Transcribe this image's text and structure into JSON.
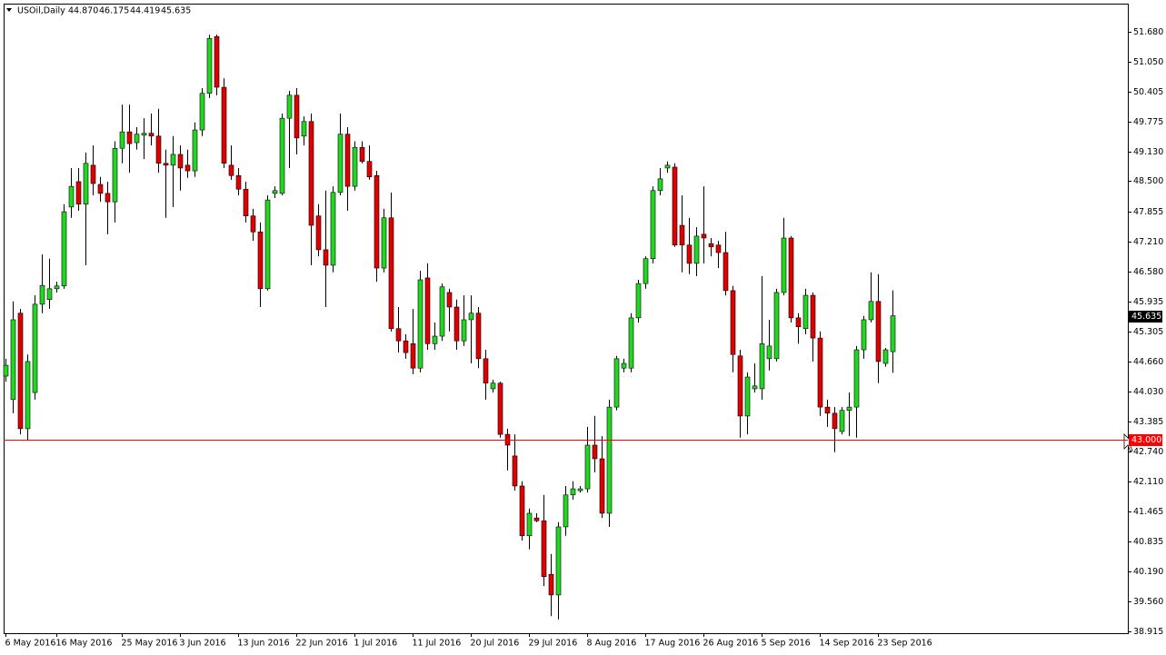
{
  "chart_data": {
    "type": "candlestick",
    "title": "USOil,Daily",
    "info": [
      "44.870",
      "46.175",
      "44.419",
      "45.635"
    ],
    "bull_color": "#22d622",
    "bear_color": "#e00000",
    "wick_color": "#000000",
    "open": [
      44.35,
      43.85,
      45.69,
      43.23,
      44.0,
      45.88,
      45.98,
      46.21,
      46.27,
      47.95,
      48.49,
      48.01,
      48.84,
      48.43,
      48.24,
      48.06,
      49.2,
      49.55,
      49.32,
      49.48,
      49.52,
      49.46,
      48.88,
      48.84,
      49.07,
      48.84,
      48.72,
      49.59,
      50.37,
      51.58,
      50.5,
      48.84,
      48.62,
      48.33,
      47.76,
      47.42,
      46.21,
      48.24,
      48.24,
      49.84,
      50.33,
      49.46,
      49.77,
      47.76,
      47.04,
      46.71,
      48.26,
      49.5,
      48.39,
      49.22,
      48.92,
      48.62,
      46.65,
      47.72,
      45.36,
      45.1,
      45.04,
      44.52,
      46.44,
      45.04,
      45.2,
      46.13,
      45.82,
      45.1,
      45.55,
      45.69,
      44.72,
      44.08,
      44.2,
      43.11,
      42.65,
      42.01,
      40.95,
      41.33,
      41.27,
      40.13,
      39.69,
      41.14,
      41.82,
      41.91,
      41.95,
      42.88,
      42.59,
      41.43,
      43.69,
      44.52,
      44.52,
      45.59,
      46.32,
      46.85,
      48.3,
      48.78,
      48.8,
      47.56,
      47.14,
      46.75,
      47.37,
      47.17,
      47.14,
      46.98,
      46.17,
      44.78,
      43.5,
      44.08,
      44.08,
      44.72,
      44.72,
      46.13,
      47.29,
      45.59,
      45.36,
      46.07,
      45.16,
      43.69,
      43.56,
      43.17,
      43.62,
      43.69,
      44.91,
      45.55,
      45.94,
      44.62,
      44.87
    ],
    "high": [
      44.72,
      45.94,
      45.78,
      44.81,
      46.07,
      46.94,
      46.85,
      46.36,
      48.01,
      48.78,
      48.78,
      49.11,
      49.26,
      48.59,
      48.49,
      49.35,
      50.13,
      50.13,
      49.65,
      49.84,
      49.94,
      50.04,
      49.17,
      49.46,
      49.26,
      49.17,
      49.75,
      50.48,
      51.62,
      51.62,
      50.69,
      49.26,
      48.78,
      48.49,
      47.91,
      47.62,
      48.2,
      48.39,
      49.94,
      50.42,
      50.48,
      49.88,
      49.94,
      48.01,
      48.3,
      48.39,
      49.94,
      49.65,
      49.35,
      49.35,
      49.26,
      48.72,
      47.91,
      48.26,
      45.82,
      45.24,
      45.78,
      46.59,
      46.75,
      45.49,
      46.32,
      46.21,
      45.98,
      46.07,
      46.07,
      45.82,
      44.91,
      44.27,
      44.23,
      43.23,
      43.11,
      42.11,
      41.53,
      41.43,
      41.82,
      40.56,
      41.24,
      42.01,
      42.11,
      42.01,
      43.27,
      43.5,
      43.07,
      43.85,
      44.78,
      44.72,
      45.69,
      46.4,
      46.9,
      48.39,
      48.78,
      48.92,
      48.88,
      48.2,
      47.72,
      47.52,
      48.39,
      47.29,
      47.23,
      47.42,
      46.27,
      44.91,
      44.43,
      44.62,
      46.48,
      45.55,
      46.21,
      47.72,
      47.33,
      45.69,
      46.21,
      46.13,
      45.3,
      43.85,
      43.69,
      43.69,
      44.0,
      44.99,
      45.63,
      46.56,
      46.52,
      44.95,
      46.175
    ],
    "low": [
      44.23,
      43.56,
      43.11,
      42.98,
      43.85,
      45.69,
      45.78,
      46.13,
      46.21,
      47.72,
      47.87,
      46.71,
      48.2,
      48.06,
      47.37,
      47.62,
      48.88,
      48.68,
      49.17,
      48.97,
      49.26,
      48.68,
      47.72,
      47.95,
      48.3,
      48.57,
      48.59,
      49.46,
      50.27,
      50.33,
      48.78,
      48.53,
      48.2,
      47.62,
      47.23,
      45.82,
      46.17,
      48.14,
      48.2,
      48.78,
      49.07,
      49.26,
      46.71,
      46.9,
      45.82,
      46.56,
      48.2,
      47.87,
      48.3,
      48.88,
      48.53,
      46.36,
      46.56,
      45.3,
      44.85,
      44.72,
      44.39,
      44.43,
      44.91,
      44.91,
      45.1,
      45.3,
      44.91,
      44.99,
      44.62,
      44.52,
      43.85,
      44.0,
      43.04,
      42.34,
      41.91,
      40.85,
      40.66,
      41.24,
      39.88,
      39.24,
      39.17,
      40.95,
      41.72,
      41.87,
      41.87,
      42.3,
      41.33,
      41.14,
      43.62,
      44.43,
      44.43,
      45.49,
      46.21,
      46.75,
      48.2,
      48.68,
      47.1,
      46.56,
      46.52,
      46.48,
      46.75,
      46.9,
      46.65,
      46.07,
      44.43,
      43.04,
      43.11,
      44.0,
      43.85,
      44.47,
      44.66,
      46.07,
      45.49,
      45.04,
      45.24,
      44.66,
      43.5,
      43.27,
      42.73,
      43.11,
      43.07,
      43.04,
      44.72,
      45.49,
      44.2,
      44.55,
      44.419
    ],
    "close": [
      44.58,
      45.55,
      43.23,
      44.66,
      45.88,
      46.28,
      46.21,
      46.27,
      47.85,
      48.39,
      48.01,
      48.88,
      48.45,
      48.24,
      48.06,
      49.2,
      49.55,
      49.3,
      49.5,
      49.52,
      49.46,
      48.88,
      48.84,
      49.07,
      48.78,
      48.72,
      49.59,
      50.37,
      51.54,
      50.5,
      48.88,
      48.62,
      48.33,
      47.76,
      47.42,
      46.21,
      48.1,
      48.3,
      49.84,
      50.33,
      49.42,
      49.77,
      47.56,
      47.04,
      46.71,
      48.26,
      49.5,
      48.39,
      49.22,
      48.92,
      48.59,
      46.65,
      47.72,
      45.36,
      45.1,
      44.85,
      44.52,
      46.4,
      45.04,
      45.2,
      46.25,
      45.82,
      45.1,
      45.55,
      45.69,
      44.72,
      44.2,
      44.2,
      43.11,
      42.88,
      42.01,
      40.95,
      41.43,
      41.27,
      40.08,
      39.69,
      41.14,
      41.82,
      41.95,
      41.95,
      42.88,
      42.59,
      41.43,
      43.69,
      44.72,
      44.62,
      45.59,
      46.32,
      46.85,
      48.3,
      48.55,
      48.84,
      47.14,
      47.14,
      46.75,
      47.33,
      47.29,
      47.1,
      46.98,
      46.17,
      44.81,
      43.5,
      44.33,
      44.14,
      45.04,
      44.99,
      46.13,
      47.29,
      45.59,
      45.4,
      46.07,
      45.16,
      43.69,
      43.56,
      43.23,
      43.62,
      43.69,
      44.91,
      45.55,
      45.94,
      44.66,
      44.91,
      45.635
    ],
    "xlim": [
      -0.25,
      154.375
    ],
    "xticks": [
      {
        "value": 0,
        "label": "6 May 2016"
      },
      {
        "value": 7,
        "label": "16 May 2016"
      },
      {
        "value": 16,
        "label": "25 May 2016"
      },
      {
        "value": 24,
        "label": "3 Jun 2016"
      },
      {
        "value": 32,
        "label": "13 Jun 2016"
      },
      {
        "value": 40,
        "label": "22 Jun 2016"
      },
      {
        "value": 48,
        "label": "1 Jul 2016"
      },
      {
        "value": 56,
        "label": "11 Jul 2016"
      },
      {
        "value": 64,
        "label": "20 Jul 2016"
      },
      {
        "value": 72,
        "label": "29 Jul 2016"
      },
      {
        "value": 80,
        "label": "8 Aug 2016"
      },
      {
        "value": 88,
        "label": "17 Aug 2016"
      },
      {
        "value": 96,
        "label": "26 Aug 2016"
      },
      {
        "value": 104,
        "label": "5 Sep 2016"
      },
      {
        "value": 112,
        "label": "14 Sep 2016"
      },
      {
        "value": 120,
        "label": "23 Sep 2016"
      }
    ],
    "ylim": [
      38.876,
      52.28
    ],
    "yticks": [
      {
        "value": 51.68,
        "label": "51.680"
      },
      {
        "value": 51.05,
        "label": "51.050"
      },
      {
        "value": 50.405,
        "label": "50.405"
      },
      {
        "value": 49.775,
        "label": "49.775"
      },
      {
        "value": 49.13,
        "label": "49.130"
      },
      {
        "value": 48.5,
        "label": "48.500"
      },
      {
        "value": 47.855,
        "label": "47.855"
      },
      {
        "value": 47.21,
        "label": "47.210"
      },
      {
        "value": 46.58,
        "label": "46.580"
      },
      {
        "value": 45.935,
        "label": "45.935"
      },
      {
        "value": 45.305,
        "label": "45.305"
      },
      {
        "value": 44.66,
        "label": "44.660"
      },
      {
        "value": 44.03,
        "label": "44.030"
      },
      {
        "value": 43.385,
        "label": "43.385"
      },
      {
        "value": 42.74,
        "label": "42.740"
      },
      {
        "value": 42.11,
        "label": "42.110"
      },
      {
        "value": 41.465,
        "label": "41.465"
      },
      {
        "value": 40.835,
        "label": "40.835"
      },
      {
        "value": 40.19,
        "label": "40.190"
      },
      {
        "value": 39.56,
        "label": "39.560"
      },
      {
        "value": 38.915,
        "label": "38.915"
      }
    ],
    "horizontal_line": {
      "value": 43.0,
      "label": "43.000",
      "color": "#ff0000"
    },
    "bid_line": {
      "value": 45.635,
      "label": "45.635",
      "color": "#000000"
    },
    "grid": false
  }
}
